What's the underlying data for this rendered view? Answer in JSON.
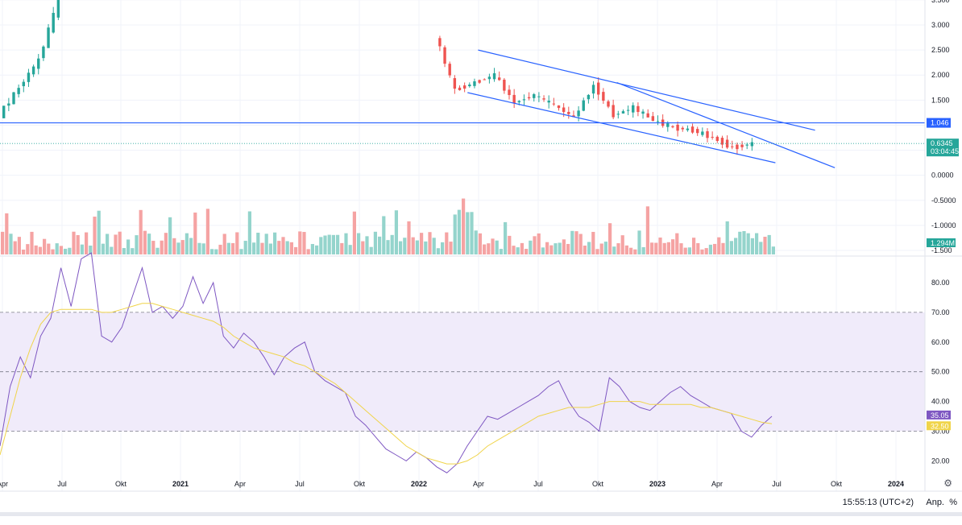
{
  "chart_data": [
    {
      "type": "candlestick",
      "title": "",
      "price_axis": {
        "ticks": [
          "3.500",
          "3.000",
          "2.500",
          "2.000",
          "1.500",
          "1.000",
          "0.5000",
          "0.0000",
          "-0.5000",
          "-1.0000",
          "-1.500"
        ],
        "tick_values": [
          3.5,
          3.0,
          2.5,
          2.0,
          1.5,
          1.0,
          0.5,
          0.0,
          -0.5,
          -1.0,
          -1.5
        ],
        "ylim": [
          -1.5,
          3.55
        ]
      },
      "price_series": [
        {
          "date": "2020-04-01",
          "open": 0.95,
          "high": 1.25,
          "low": 0.9,
          "close": 1.2
        },
        {
          "date": "2020-05-01",
          "open": 1.2,
          "high": 1.9,
          "low": 1.1,
          "close": 1.75
        },
        {
          "date": "2020-06-01",
          "open": 1.75,
          "high": 2.5,
          "low": 1.7,
          "close": 2.3
        },
        {
          "date": "2020-07-01",
          "open": 2.3,
          "high": 3.6,
          "low": 2.2,
          "close": 3.5
        },
        {
          "date": "2022-02-01",
          "open": 3.5,
          "high": 3.5,
          "low": 2.5,
          "close": 2.8
        },
        {
          "date": "2022-03-01",
          "open": 2.8,
          "high": 2.9,
          "low": 1.55,
          "close": 1.7
        },
        {
          "date": "2022-04-01",
          "open": 1.7,
          "high": 2.1,
          "low": 1.5,
          "close": 1.85
        },
        {
          "date": "2022-05-01",
          "open": 1.85,
          "high": 2.3,
          "low": 1.7,
          "close": 2.0
        },
        {
          "date": "2022-06-01",
          "open": 2.0,
          "high": 2.0,
          "low": 1.35,
          "close": 1.45
        },
        {
          "date": "2022-07-01",
          "open": 1.45,
          "high": 1.7,
          "low": 1.35,
          "close": 1.6
        },
        {
          "date": "2022-08-01",
          "open": 1.6,
          "high": 2.0,
          "low": 1.3,
          "close": 1.4
        },
        {
          "date": "2022-09-01",
          "open": 1.4,
          "high": 1.5,
          "low": 1.05,
          "close": 1.15
        },
        {
          "date": "2022-10-01",
          "open": 1.15,
          "high": 1.85,
          "low": 1.1,
          "close": 1.8
        },
        {
          "date": "2022-11-01",
          "open": 1.8,
          "high": 1.85,
          "low": 1.1,
          "close": 1.2
        },
        {
          "date": "2022-12-01",
          "open": 1.2,
          "high": 1.45,
          "low": 1.1,
          "close": 1.35
        },
        {
          "date": "2023-01-01",
          "open": 1.35,
          "high": 1.4,
          "low": 1.05,
          "close": 1.1
        },
        {
          "date": "2023-02-01",
          "open": 1.1,
          "high": 1.15,
          "low": 0.9,
          "close": 0.95
        },
        {
          "date": "2023-03-01",
          "open": 0.95,
          "high": 1.0,
          "low": 0.85,
          "close": 0.9
        },
        {
          "date": "2023-04-01",
          "open": 0.9,
          "high": 0.95,
          "low": 0.7,
          "close": 0.75
        },
        {
          "date": "2023-05-01",
          "open": 0.75,
          "high": 0.8,
          "low": 0.5,
          "close": 0.55
        },
        {
          "date": "2023-06-01",
          "open": 0.55,
          "high": 0.7,
          "low": 0.5,
          "close": 0.6345
        }
      ],
      "horizontal_line": {
        "value": 1.046,
        "label": "1.046",
        "color": "#2962ff"
      },
      "trend_channel": {
        "upper": {
          "from": {
            "date": "2022-04-01",
            "value": 2.5
          },
          "to": {
            "date": "2023-09-01",
            "value": 0.9
          }
        },
        "lower": {
          "from": {
            "date": "2022-03-15",
            "value": 1.65
          },
          "to": {
            "date": "2023-07-01",
            "value": 0.25
          }
        },
        "extra": {
          "from": {
            "date": "2022-11-01",
            "value": 1.85
          },
          "to": {
            "date": "2023-10-01",
            "value": 0.15
          }
        },
        "color": "#2962ff"
      },
      "last_price_tag": {
        "value": "0.6345",
        "countdown": "03:04:45",
        "color": "#26a69a"
      },
      "volume_tag": {
        "value": "1.294M",
        "color": "#26a69a"
      },
      "colors": {
        "up": "#26a69a",
        "down": "#ef5350",
        "volume_up": "#94d4cc",
        "volume_down": "#f5a3a3"
      }
    },
    {
      "type": "line",
      "title": "RSI",
      "y_axis": {
        "ticks": [
          "80.00",
          "70.00",
          "60.00",
          "50.00",
          "40.00",
          "30.00",
          "20.00"
        ],
        "tick_values": [
          80,
          70,
          60,
          50,
          40,
          30,
          20
        ],
        "ylim": [
          14,
          87
        ]
      },
      "band": {
        "upper": 70,
        "middle": 50,
        "lower": 30,
        "fill": "#f0ebfa",
        "line_color": "#787b86"
      },
      "series": [
        {
          "name": "RSI",
          "color": "#7e57c2",
          "last_value": "35.05",
          "values": [
            25,
            45,
            55,
            48,
            62,
            68,
            85,
            72,
            88,
            90,
            62,
            60,
            65,
            75,
            85,
            70,
            72,
            68,
            72,
            82,
            73,
            80,
            62,
            58,
            63,
            60,
            55,
            49,
            55,
            58,
            60,
            50,
            47,
            45,
            43,
            35,
            32,
            28,
            24,
            22,
            20,
            23,
            21,
            18,
            16,
            19,
            25,
            30,
            35,
            34,
            36,
            38,
            40,
            42,
            45,
            47,
            40,
            35,
            33,
            30,
            48,
            45,
            40,
            38,
            37,
            40,
            43,
            45,
            42,
            40,
            38,
            37,
            36,
            30,
            28,
            32,
            35
          ]
        },
        {
          "name": "RSI-based MA",
          "color": "#f0d44a",
          "last_value": "32.50",
          "values": [
            22,
            35,
            48,
            58,
            66,
            70,
            71,
            71,
            71,
            71,
            70,
            70,
            71,
            72,
            73,
            73,
            72,
            71,
            70,
            69,
            68,
            67,
            65,
            62,
            60,
            58,
            57,
            56,
            55,
            53,
            52,
            50,
            48,
            46,
            43,
            40,
            37,
            34,
            31,
            28,
            25,
            23,
            21,
            20,
            19,
            19,
            20,
            22,
            25,
            27,
            29,
            31,
            33,
            35,
            36,
            37,
            38,
            38,
            38,
            39,
            40,
            40,
            40,
            40,
            39,
            39,
            39,
            39,
            39,
            38,
            38,
            37,
            36,
            35,
            34,
            33,
            32.5
          ]
        }
      ]
    }
  ],
  "x_axis": {
    "labels": [
      "Apr",
      "Jul",
      "Okt",
      "2021",
      "Apr",
      "Jul",
      "Okt",
      "2022",
      "Apr",
      "Jul",
      "Okt",
      "2023",
      "Apr",
      "Jul",
      "Okt",
      "2024"
    ],
    "bold": [
      "2021",
      "2022",
      "2023",
      "2024"
    ]
  },
  "bottom_bar": {
    "clock": "15:55:13 (UTC+2)",
    "scale_mode": "Anp.",
    "percent": "%"
  },
  "icons": {
    "settings": "gear-icon"
  }
}
